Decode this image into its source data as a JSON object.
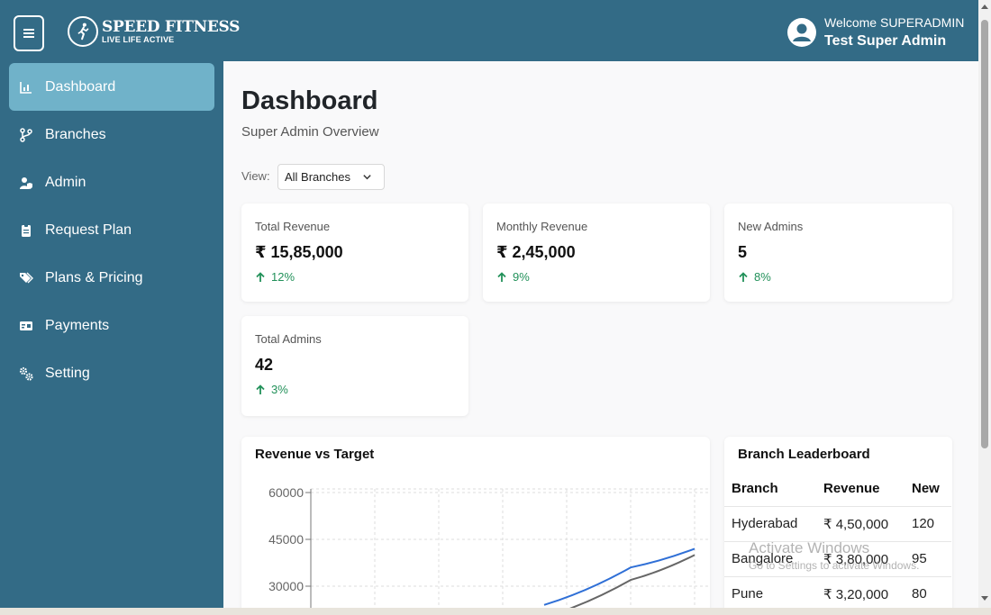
{
  "brand": {
    "name": "SPEED FITNESS",
    "tagline": "LIVE LIFE ACTIVE"
  },
  "user": {
    "welcome": "Welcome SUPERADMIN",
    "name": "Test Super Admin"
  },
  "sidebar": {
    "items": [
      {
        "label": "Dashboard",
        "icon": "chart-icon",
        "active": true
      },
      {
        "label": "Branches",
        "icon": "branch-icon",
        "active": false
      },
      {
        "label": "Admin",
        "icon": "user-shield-icon",
        "active": false
      },
      {
        "label": "Request Plan",
        "icon": "clipboard-icon",
        "active": false
      },
      {
        "label": "Plans & Pricing",
        "icon": "tags-icon",
        "active": false
      },
      {
        "label": "Payments",
        "icon": "money-card-icon",
        "active": false
      },
      {
        "label": "Setting",
        "icon": "gears-icon",
        "active": false
      }
    ]
  },
  "page": {
    "title": "Dashboard",
    "subtitle": "Super Admin Overview",
    "view_label": "View:",
    "view_selected": "All Branches"
  },
  "stats": [
    {
      "label": "Total Revenue",
      "value": "₹ 15,85,000",
      "change": "12%"
    },
    {
      "label": "Monthly Revenue",
      "value": "₹ 2,45,000",
      "change": "9%"
    },
    {
      "label": "New Admins",
      "value": "5",
      "change": "8%"
    },
    {
      "label": "Total Admins",
      "value": "42",
      "change": "3%"
    }
  ],
  "revenue_chart": {
    "title": "Revenue vs Target"
  },
  "leaderboard": {
    "title": "Branch Leaderboard",
    "columns": [
      "Branch",
      "Revenue",
      "New"
    ],
    "rows": [
      [
        "Hyderabad",
        "₹ 4,50,000",
        "120"
      ],
      [
        "Bangalore",
        "₹ 3,80,000",
        "95"
      ],
      [
        "Pune",
        "₹ 3,20,000",
        "80"
      ]
    ]
  },
  "watermark": {
    "line1": "Activate Windows",
    "line2": "Go to Settings to activate Windows."
  },
  "colors": {
    "primary": "#336b86",
    "active_nav": "#70b2c9",
    "positive": "#22915a",
    "revenue_line": "#2f6fd6",
    "target_line": "#666666"
  },
  "chart_data": {
    "type": "line",
    "title": "Revenue vs Target",
    "x": [
      0,
      1,
      2,
      3,
      4,
      5,
      6
    ],
    "ylim": [
      0,
      60000
    ],
    "yticks": [
      30000,
      45000,
      60000
    ],
    "grid": true,
    "series": [
      {
        "color": "#2f6fd6",
        "values": [
          null,
          null,
          null,
          null,
          24000,
          36000,
          42000
        ]
      },
      {
        "color": "#666666",
        "values": [
          null,
          null,
          null,
          null,
          20000,
          32000,
          40000
        ]
      }
    ]
  }
}
